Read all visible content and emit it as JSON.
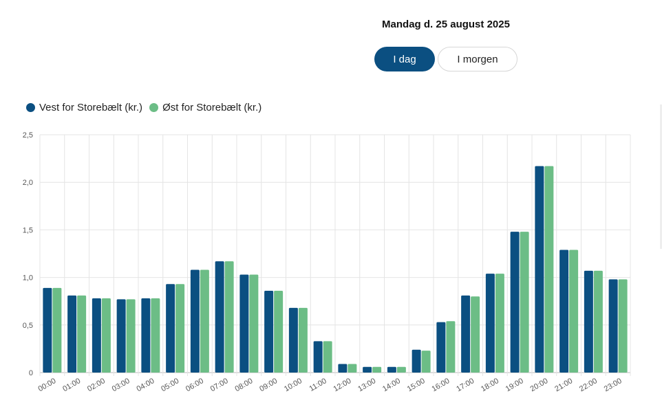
{
  "header": {
    "date": "Mandag d. 25 august 2025",
    "today_label": "I dag",
    "tomorrow_label": "I morgen"
  },
  "chart_data": {
    "type": "bar",
    "title": "",
    "xlabel": "",
    "ylabel": "",
    "ylim": [
      0,
      2.5
    ],
    "yticks": [
      "0",
      "0,5",
      "1,0",
      "1,5",
      "2,0",
      "2,5"
    ],
    "categories": [
      "00:00",
      "01:00",
      "02:00",
      "03:00",
      "04:00",
      "05:00",
      "06:00",
      "07:00",
      "08:00",
      "09:00",
      "10:00",
      "11:00",
      "12:00",
      "13:00",
      "14:00",
      "15:00",
      "16:00",
      "17:00",
      "18:00",
      "19:00",
      "20:00",
      "21:00",
      "22:00",
      "23:00"
    ],
    "series": [
      {
        "name": "Vest for Storebælt (kr.)",
        "color": "#0b4f81",
        "values": [
          0.89,
          0.81,
          0.78,
          0.77,
          0.78,
          0.93,
          1.08,
          1.17,
          1.03,
          0.86,
          0.68,
          0.33,
          0.09,
          0.06,
          0.06,
          0.24,
          0.53,
          0.81,
          1.04,
          1.48,
          2.17,
          1.29,
          1.07,
          0.98
        ]
      },
      {
        "name": "Øst for Storebælt (kr.)",
        "color": "#6cbd86",
        "values": [
          0.89,
          0.81,
          0.78,
          0.77,
          0.78,
          0.93,
          1.08,
          1.17,
          1.03,
          0.86,
          0.68,
          0.33,
          0.09,
          0.06,
          0.06,
          0.23,
          0.54,
          0.8,
          1.04,
          1.48,
          2.17,
          1.29,
          1.07,
          0.98
        ]
      }
    ],
    "grid": true,
    "legend": "top-left"
  }
}
